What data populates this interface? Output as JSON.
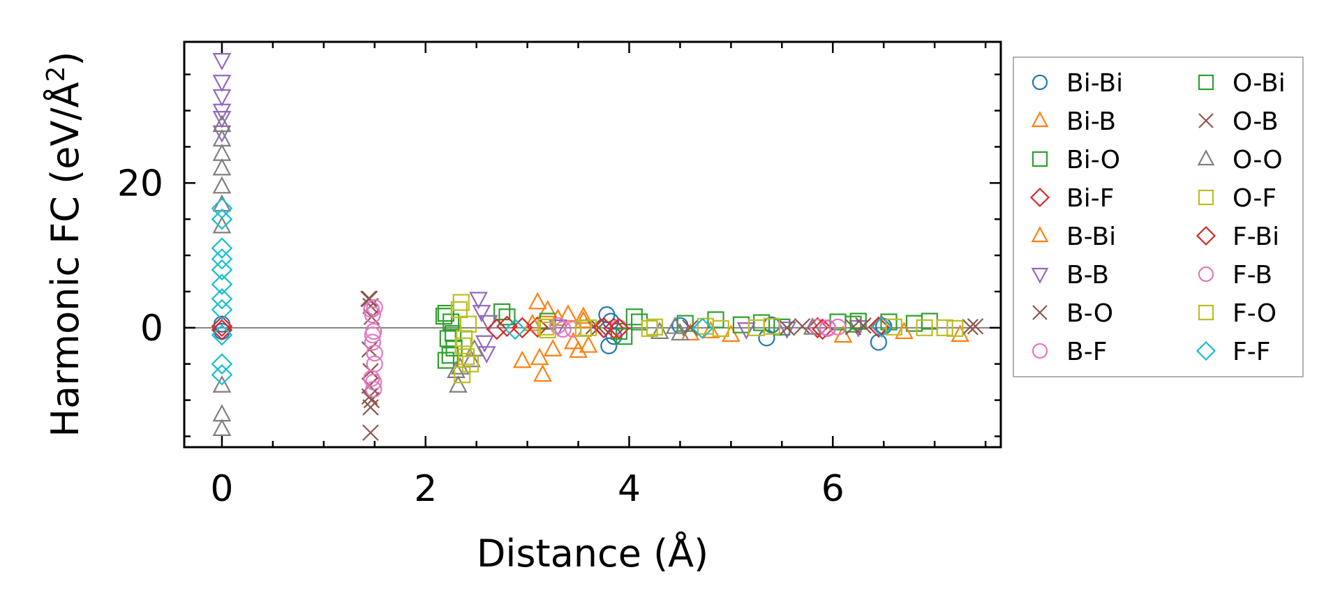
{
  "chart_data": {
    "type": "scatter",
    "title": "",
    "xlabel": "Distance (Å)",
    "ylabel_main": "Harmonic FC (eV/Å",
    "ylabel_sup": "2",
    "ylabel_close": ")",
    "xlim": [
      -0.37,
      7.65
    ],
    "ylim": [
      -16.5,
      39.5
    ],
    "xticks": [
      0,
      2,
      4,
      6
    ],
    "xtick_labels": [
      "0",
      "2",
      "4",
      "6"
    ],
    "yticks": [
      0,
      20
    ],
    "ytick_labels": [
      "0",
      "20"
    ],
    "zero_line": 0,
    "legend_position": "right-outside",
    "series": [
      {
        "name": "Bi-Bi",
        "marker": "circle",
        "color": "#1f77b4",
        "points": [
          [
            0,
            0.5
          ],
          [
            0,
            -0.5
          ],
          [
            3.78,
            1.8
          ],
          [
            3.8,
            -2.5
          ],
          [
            3.82,
            0.9
          ],
          [
            3.85,
            -1.2
          ],
          [
            4.5,
            0.3
          ],
          [
            5.35,
            -1.4
          ],
          [
            5.4,
            0.4
          ],
          [
            6.45,
            -2.0
          ],
          [
            6.5,
            0.2
          ]
        ]
      },
      {
        "name": "Bi-B",
        "marker": "triangle-up",
        "color": "#ff7f0e",
        "points": [
          [
            3.1,
            3.5
          ],
          [
            3.12,
            -4.2
          ],
          [
            3.15,
            -6.5
          ],
          [
            3.2,
            2.4
          ],
          [
            3.25,
            -3.0
          ],
          [
            3.4,
            1.8
          ],
          [
            3.5,
            -3.2
          ],
          [
            3.55,
            1.5
          ],
          [
            3.6,
            -2.5
          ],
          [
            4.6,
            -0.8
          ],
          [
            5.0,
            -1.0
          ],
          [
            6.1,
            -1.1
          ],
          [
            7.25,
            -1.0
          ]
        ]
      },
      {
        "name": "Bi-O",
        "marker": "square",
        "color": "#2ca02c",
        "points": [
          [
            2.18,
            1.6
          ],
          [
            2.2,
            -4.5
          ],
          [
            2.22,
            -1.5
          ],
          [
            2.25,
            0.8
          ],
          [
            2.28,
            -2.8
          ],
          [
            2.75,
            2.2
          ],
          [
            3.2,
            0.9
          ],
          [
            3.9,
            -0.5
          ],
          [
            4.1,
            0.8
          ],
          [
            4.55,
            0.6
          ],
          [
            5.1,
            0.4
          ],
          [
            5.5,
            0.1
          ],
          [
            6.2,
            0.5
          ],
          [
            6.8,
            0.6
          ]
        ]
      },
      {
        "name": "Bi-F",
        "marker": "diamond",
        "color": "#d62728",
        "points": [
          [
            0,
            -0.3
          ],
          [
            2.8,
            0.2
          ],
          [
            3.1,
            0.1
          ],
          [
            3.85,
            -0.1
          ],
          [
            5.85,
            0.0
          ],
          [
            6.45,
            0.1
          ]
        ]
      },
      {
        "name": "B-Bi",
        "marker": "triangle-up",
        "color": "#ff7f0e",
        "points": [
          [
            2.95,
            -4.6
          ],
          [
            3.05,
            0.5
          ],
          [
            3.3,
            1.2
          ],
          [
            3.45,
            -2.0
          ],
          [
            3.55,
            0.9
          ],
          [
            4.8,
            -0.5
          ],
          [
            6.7,
            -0.6
          ]
        ]
      },
      {
        "name": "B-B",
        "marker": "triangle-down",
        "color": "#9467bd",
        "points": [
          [
            0,
            37
          ],
          [
            0,
            34
          ],
          [
            0,
            32
          ],
          [
            0,
            30
          ],
          [
            0,
            29
          ],
          [
            0,
            27
          ],
          [
            2.52,
            4
          ],
          [
            2.55,
            2.2
          ],
          [
            2.58,
            -2.0
          ],
          [
            2.6,
            -3.5
          ],
          [
            2.62,
            0.8
          ],
          [
            3.3,
            0.2
          ],
          [
            5.15,
            -0.2
          ],
          [
            5.55,
            -0.1
          ],
          [
            6.25,
            0.1
          ]
        ]
      },
      {
        "name": "B-O",
        "marker": "x",
        "color": "#8c564b",
        "points": [
          [
            1.45,
            4.0
          ],
          [
            1.46,
            3.0
          ],
          [
            1.47,
            1.5
          ],
          [
            1.45,
            -3
          ],
          [
            1.46,
            -6
          ],
          [
            1.45,
            -8
          ],
          [
            1.47,
            -10
          ],
          [
            1.46,
            -14.5
          ],
          [
            3.7,
            0.0
          ],
          [
            5.55,
            0.0
          ],
          [
            6.2,
            0.1
          ],
          [
            7.35,
            0.1
          ]
        ]
      },
      {
        "name": "B-F",
        "marker": "circle",
        "color": "#e377c2",
        "points": [
          [
            1.47,
            2.5
          ],
          [
            1.48,
            1.8
          ],
          [
            1.49,
            -0.5
          ],
          [
            1.48,
            -2.0
          ],
          [
            1.5,
            -5.0
          ],
          [
            1.49,
            -7.5
          ],
          [
            3.3,
            0.3
          ],
          [
            3.45,
            -0.2
          ],
          [
            3.9,
            0.0
          ],
          [
            5.85,
            0.1
          ],
          [
            5.95,
            -0.1
          ]
        ]
      },
      {
        "name": "O-Bi",
        "marker": "square",
        "color": "#2ca02c",
        "points": [
          [
            2.2,
            2.0
          ],
          [
            2.24,
            -3.8
          ],
          [
            2.27,
            -0.8
          ],
          [
            2.8,
            1.5
          ],
          [
            3.95,
            -1.2
          ],
          [
            4.05,
            1.5
          ],
          [
            4.85,
            1.1
          ],
          [
            5.3,
            0.7
          ],
          [
            6.05,
            0.8
          ],
          [
            6.25,
            0.9
          ],
          [
            6.55,
            0.8
          ],
          [
            6.95,
            0.9
          ]
        ]
      },
      {
        "name": "O-B",
        "marker": "x",
        "color": "#8c564b",
        "points": [
          [
            1.44,
            4.0
          ],
          [
            1.45,
            -9.5
          ],
          [
            1.46,
            -11
          ],
          [
            3.65,
            0.2
          ],
          [
            4.6,
            0.0
          ],
          [
            5.7,
            0.2
          ],
          [
            6.3,
            0.3
          ],
          [
            7.4,
            0.2
          ]
        ]
      },
      {
        "name": "O-O",
        "marker": "triangle-up",
        "color": "#7f7f7f",
        "points": [
          [
            0,
            28
          ],
          [
            0,
            26
          ],
          [
            0,
            24
          ],
          [
            0,
            22
          ],
          [
            0,
            19.5
          ],
          [
            0,
            17
          ],
          [
            0,
            14
          ],
          [
            0,
            -8
          ],
          [
            0,
            -12
          ],
          [
            0,
            -14
          ],
          [
            2.3,
            -6
          ],
          [
            2.32,
            -8
          ],
          [
            2.34,
            -5.5
          ],
          [
            2.45,
            -4.5
          ],
          [
            2.48,
            -3.0
          ],
          [
            4.3,
            -0.6
          ],
          [
            4.45,
            0.1
          ],
          [
            4.5,
            -0.8
          ],
          [
            5.8,
            0.0
          ]
        ]
      },
      {
        "name": "O-F",
        "marker": "square",
        "color": "#bcbd22",
        "points": [
          [
            2.35,
            3.5
          ],
          [
            2.38,
            -1.5
          ],
          [
            2.4,
            -4.0
          ],
          [
            2.36,
            -6.5
          ],
          [
            2.42,
            0.5
          ],
          [
            3.2,
            -0.3
          ],
          [
            3.6,
            0.0
          ],
          [
            4.2,
            -0.1
          ],
          [
            4.75,
            0.2
          ],
          [
            5.25,
            0.0
          ],
          [
            6.9,
            0.0
          ],
          [
            7.2,
            -0.1
          ]
        ]
      },
      {
        "name": "F-Bi",
        "marker": "diamond",
        "color": "#d62728",
        "points": [
          [
            0,
            0.2
          ],
          [
            2.7,
            -0.2
          ],
          [
            2.95,
            0.0
          ],
          [
            3.75,
            0.0
          ],
          [
            3.9,
            -0.1
          ],
          [
            5.9,
            -0.2
          ],
          [
            6.48,
            0.2
          ]
        ]
      },
      {
        "name": "F-B",
        "marker": "circle",
        "color": "#e377c2",
        "points": [
          [
            1.5,
            2.8
          ],
          [
            1.48,
            -1.0
          ],
          [
            1.5,
            -3.5
          ],
          [
            1.47,
            -7.0
          ],
          [
            1.49,
            -8.5
          ],
          [
            3.35,
            -0.2
          ],
          [
            5.95,
            0.0
          ],
          [
            6.05,
            0.1
          ]
        ]
      },
      {
        "name": "F-O",
        "marker": "square",
        "color": "#bcbd22",
        "points": [
          [
            2.33,
            2.5
          ],
          [
            2.37,
            -2.5
          ],
          [
            2.44,
            -5.0
          ],
          [
            3.18,
            0.1
          ],
          [
            3.55,
            -0.1
          ],
          [
            4.25,
            0.1
          ],
          [
            4.9,
            -0.1
          ],
          [
            5.4,
            0.2
          ],
          [
            6.6,
            0.1
          ],
          [
            7.1,
            0.0
          ]
        ]
      },
      {
        "name": "F-F",
        "marker": "diamond",
        "color": "#17becf",
        "points": [
          [
            0,
            16.5
          ],
          [
            0,
            15
          ],
          [
            0,
            11
          ],
          [
            0,
            9.5
          ],
          [
            0,
            8
          ],
          [
            0,
            6
          ],
          [
            0,
            4
          ],
          [
            0,
            2.5
          ],
          [
            0,
            -1
          ],
          [
            0,
            -5
          ],
          [
            0,
            -6.5
          ],
          [
            2.88,
            -0.2
          ],
          [
            4.72,
            -0.1
          ],
          [
            6.48,
            0.1
          ]
        ]
      }
    ]
  }
}
